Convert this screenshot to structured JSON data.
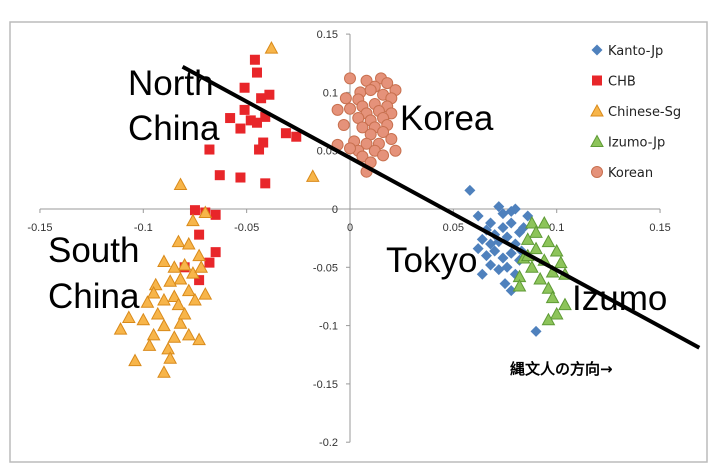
{
  "chart_data": {
    "type": "scatter",
    "title": "",
    "xlabel": "",
    "ylabel": "",
    "xlim": [
      -0.15,
      0.15
    ],
    "ylim": [
      -0.2,
      0.15
    ],
    "x_ticks": [
      "-0.15",
      "-0.1",
      "-0.05",
      "0",
      "0.05",
      "0.1",
      "0.15"
    ],
    "y_ticks": [
      "0.15",
      "0.1",
      "0.05",
      "0",
      "-0.05",
      "-0.1",
      "-0.15",
      "-0.2"
    ],
    "grid": false,
    "legend_position": "top-right",
    "series": [
      {
        "name": "Kanto-Jp",
        "marker": "diamond",
        "color": "#4f81bd",
        "points": [
          [
            0.058,
            0.016
          ],
          [
            0.062,
            -0.006
          ],
          [
            0.068,
            -0.012
          ],
          [
            0.072,
            0.002
          ],
          [
            0.074,
            -0.004
          ],
          [
            0.078,
            -0.002
          ],
          [
            0.08,
            0.0
          ],
          [
            0.066,
            -0.018
          ],
          [
            0.07,
            -0.022
          ],
          [
            0.074,
            -0.016
          ],
          [
            0.078,
            -0.012
          ],
          [
            0.082,
            -0.02
          ],
          [
            0.064,
            -0.026
          ],
          [
            0.068,
            -0.03
          ],
          [
            0.072,
            -0.028
          ],
          [
            0.076,
            -0.024
          ],
          [
            0.08,
            -0.03
          ],
          [
            0.084,
            -0.016
          ],
          [
            0.062,
            -0.034
          ],
          [
            0.066,
            -0.04
          ],
          [
            0.07,
            -0.036
          ],
          [
            0.074,
            -0.042
          ],
          [
            0.078,
            -0.038
          ],
          [
            0.082,
            -0.044
          ],
          [
            0.068,
            -0.048
          ],
          [
            0.072,
            -0.052
          ],
          [
            0.076,
            -0.05
          ],
          [
            0.064,
            -0.056
          ],
          [
            0.08,
            -0.056
          ],
          [
            0.075,
            -0.064
          ],
          [
            0.078,
            -0.07
          ],
          [
            0.086,
            -0.006
          ],
          [
            0.083,
            -0.036
          ],
          [
            0.09,
            -0.105
          ]
        ]
      },
      {
        "name": "CHB",
        "marker": "square",
        "color": "#e8262a",
        "points": [
          [
            -0.046,
            0.128
          ],
          [
            -0.045,
            0.117
          ],
          [
            -0.051,
            0.104
          ],
          [
            -0.043,
            0.095
          ],
          [
            -0.039,
            0.098
          ],
          [
            -0.058,
            0.078
          ],
          [
            -0.051,
            0.085
          ],
          [
            -0.048,
            0.076
          ],
          [
            -0.053,
            0.069
          ],
          [
            -0.045,
            0.074
          ],
          [
            -0.041,
            0.079
          ],
          [
            -0.031,
            0.065
          ],
          [
            -0.026,
            0.062
          ],
          [
            -0.068,
            0.051
          ],
          [
            -0.044,
            0.051
          ],
          [
            -0.042,
            0.057
          ],
          [
            -0.063,
            0.029
          ],
          [
            -0.053,
            0.027
          ],
          [
            -0.041,
            0.022
          ],
          [
            -0.075,
            -0.001
          ],
          [
            -0.07,
            -0.003
          ],
          [
            -0.065,
            -0.005
          ],
          [
            -0.073,
            -0.022
          ],
          [
            -0.065,
            -0.037
          ],
          [
            -0.068,
            -0.046
          ],
          [
            -0.073,
            -0.061
          ],
          [
            -0.08,
            -0.05
          ]
        ]
      },
      {
        "name": "Chinese-Sg",
        "marker": "triangle",
        "color": "#f7b54a",
        "points": [
          [
            -0.038,
            0.138
          ],
          [
            -0.018,
            0.028
          ],
          [
            -0.082,
            0.021
          ],
          [
            -0.07,
            -0.003
          ],
          [
            -0.076,
            -0.01
          ],
          [
            -0.083,
            -0.028
          ],
          [
            -0.078,
            -0.03
          ],
          [
            -0.073,
            -0.04
          ],
          [
            -0.09,
            -0.045
          ],
          [
            -0.08,
            -0.048
          ],
          [
            -0.085,
            -0.05
          ],
          [
            -0.076,
            -0.055
          ],
          [
            -0.072,
            -0.05
          ],
          [
            -0.082,
            -0.06
          ],
          [
            -0.087,
            -0.062
          ],
          [
            -0.094,
            -0.065
          ],
          [
            -0.078,
            -0.07
          ],
          [
            -0.085,
            -0.075
          ],
          [
            -0.095,
            -0.072
          ],
          [
            -0.09,
            -0.078
          ],
          [
            -0.098,
            -0.08
          ],
          [
            -0.083,
            -0.082
          ],
          [
            -0.07,
            -0.073
          ],
          [
            -0.075,
            -0.078
          ],
          [
            -0.1,
            -0.095
          ],
          [
            -0.107,
            -0.093
          ],
          [
            -0.09,
            -0.1
          ],
          [
            -0.082,
            -0.098
          ],
          [
            -0.078,
            -0.108
          ],
          [
            -0.085,
            -0.11
          ],
          [
            -0.095,
            -0.108
          ],
          [
            -0.073,
            -0.112
          ],
          [
            -0.097,
            -0.117
          ],
          [
            -0.088,
            -0.12
          ],
          [
            -0.111,
            -0.103
          ],
          [
            -0.087,
            -0.128
          ],
          [
            -0.104,
            -0.13
          ],
          [
            -0.09,
            -0.14
          ],
          [
            -0.08,
            -0.09
          ],
          [
            -0.093,
            -0.09
          ]
        ]
      },
      {
        "name": "Izumo-Jp",
        "marker": "triangle",
        "color": "#8dc45a",
        "points": [
          [
            0.088,
            -0.012
          ],
          [
            0.094,
            -0.012
          ],
          [
            0.09,
            -0.02
          ],
          [
            0.086,
            -0.026
          ],
          [
            0.096,
            -0.028
          ],
          [
            0.09,
            -0.034
          ],
          [
            0.1,
            -0.036
          ],
          [
            0.084,
            -0.042
          ],
          [
            0.094,
            -0.044
          ],
          [
            0.102,
            -0.046
          ],
          [
            0.088,
            -0.05
          ],
          [
            0.098,
            -0.054
          ],
          [
            0.104,
            -0.056
          ],
          [
            0.082,
            -0.058
          ],
          [
            0.092,
            -0.06
          ],
          [
            0.096,
            -0.068
          ],
          [
            0.082,
            -0.066
          ],
          [
            0.098,
            -0.076
          ],
          [
            0.104,
            -0.082
          ],
          [
            0.1,
            -0.09
          ],
          [
            0.096,
            -0.095
          ],
          [
            0.086,
            -0.04
          ]
        ]
      },
      {
        "name": "Korean",
        "marker": "circle",
        "color": "#e5927a",
        "points": [
          [
            0.0,
            0.112
          ],
          [
            0.008,
            0.11
          ],
          [
            0.015,
            0.112
          ],
          [
            0.012,
            0.105
          ],
          [
            0.018,
            0.108
          ],
          [
            0.022,
            0.102
          ],
          [
            0.005,
            0.1
          ],
          [
            0.01,
            0.102
          ],
          [
            -0.002,
            0.095
          ],
          [
            0.004,
            0.094
          ],
          [
            0.016,
            0.098
          ],
          [
            0.02,
            0.095
          ],
          [
            0.006,
            0.088
          ],
          [
            0.012,
            0.09
          ],
          [
            0.018,
            0.088
          ],
          [
            -0.006,
            0.085
          ],
          [
            0.0,
            0.086
          ],
          [
            0.008,
            0.082
          ],
          [
            0.014,
            0.084
          ],
          [
            0.02,
            0.082
          ],
          [
            0.004,
            0.078
          ],
          [
            0.01,
            0.076
          ],
          [
            0.016,
            0.078
          ],
          [
            -0.003,
            0.072
          ],
          [
            0.006,
            0.07
          ],
          [
            0.012,
            0.07
          ],
          [
            0.018,
            0.072
          ],
          [
            0.01,
            0.064
          ],
          [
            0.016,
            0.066
          ],
          [
            0.02,
            0.06
          ],
          [
            0.002,
            0.058
          ],
          [
            0.008,
            0.056
          ],
          [
            0.014,
            0.056
          ],
          [
            0.004,
            0.05
          ],
          [
            0.012,
            0.05
          ],
          [
            0.022,
            0.05
          ],
          [
            0.0,
            0.052
          ],
          [
            -0.006,
            0.055
          ],
          [
            0.006,
            0.045
          ],
          [
            0.016,
            0.046
          ],
          [
            0.01,
            0.04
          ],
          [
            0.008,
            0.032
          ]
        ]
      }
    ],
    "trend_line": [
      [
        -0.081,
        0.122
      ],
      [
        0.169,
        -0.119
      ]
    ],
    "annotations": {
      "north_china_1": "North",
      "north_china_2": "China",
      "korea": "Korea",
      "south_china_1": "South",
      "south_china_2": "China",
      "tokyo": "Tokyo",
      "izumo": "Izumo",
      "jomon_direction": "縄文人の方向→"
    }
  }
}
